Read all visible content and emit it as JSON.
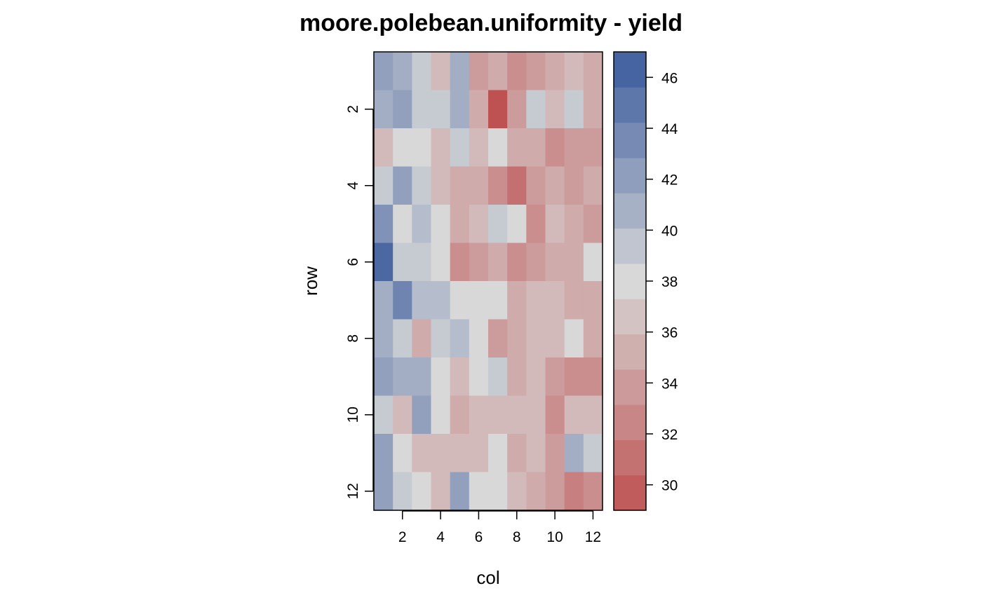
{
  "chart_data": {
    "type": "heatmap",
    "title": "moore.polebean.uniformity - yield",
    "xlabel": "col",
    "ylabel": "row",
    "x_ticks": [
      "2",
      "4",
      "6",
      "8",
      "10",
      "12"
    ],
    "y_ticks": [
      "2",
      "4",
      "6",
      "8",
      "10",
      "12"
    ],
    "colorbar_ticks": [
      "30",
      "32",
      "34",
      "36",
      "38",
      "40",
      "42",
      "44",
      "46"
    ],
    "xlim": [
      0.5,
      12.5
    ],
    "ylim": [
      12.5,
      0.5
    ],
    "zlim": [
      29,
      47
    ],
    "color_low": "#BE5252",
    "color_mid": "#D8D8D8",
    "color_high": "#3A5A9C",
    "rows": 12,
    "cols": 12,
    "values": [
      [
        42,
        41,
        39,
        36,
        41,
        34,
        35,
        33,
        34,
        35,
        36,
        35
      ],
      [
        41,
        42,
        39,
        39,
        41,
        35,
        29,
        34,
        39,
        36,
        39,
        35
      ],
      [
        36,
        38,
        38,
        36,
        39,
        36,
        38,
        35,
        35,
        33,
        34,
        34
      ],
      [
        39,
        42,
        39,
        36,
        35,
        35,
        33,
        31,
        34,
        35,
        34,
        35
      ],
      [
        43,
        38,
        40,
        38,
        35,
        36,
        39,
        38,
        33,
        36,
        35,
        34
      ],
      [
        46,
        39,
        39,
        38,
        33,
        34,
        35,
        33,
        34,
        35,
        35,
        38
      ],
      [
        41,
        44,
        40,
        40,
        38,
        38,
        38,
        35,
        36,
        36,
        35,
        35
      ],
      [
        41,
        39,
        35,
        39,
        40,
        38,
        34,
        35,
        36,
        36,
        38,
        35
      ],
      [
        42,
        41,
        41,
        38,
        36,
        38,
        39,
        35,
        36,
        34,
        33,
        33
      ],
      [
        39,
        36,
        42,
        38,
        35,
        36,
        36,
        36,
        36,
        33,
        36,
        36
      ],
      [
        42,
        38,
        36,
        36,
        36,
        36,
        38,
        35,
        36,
        34,
        41,
        39
      ],
      [
        42,
        39,
        38,
        36,
        42,
        38,
        38,
        36,
        35,
        34,
        32,
        33
      ]
    ]
  }
}
